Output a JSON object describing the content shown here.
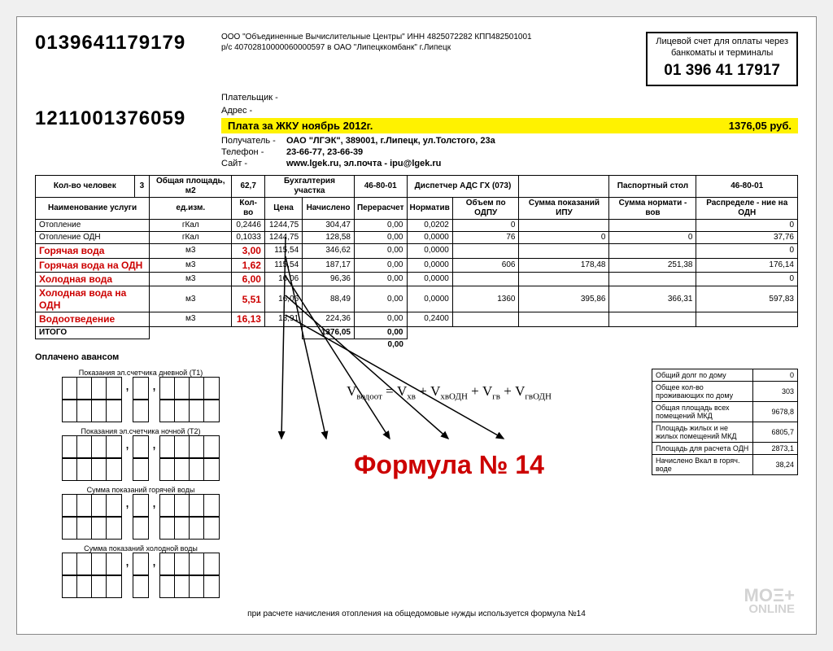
{
  "company": {
    "line1": "ООО \"Объединенные Вычислительные Центры\" ИНН 4825072282 КПП482501001",
    "line2": "р/с 40702810000060000597 в ОАО \"Липецккомбанк\" г.Липецк"
  },
  "account_box": {
    "title1": "Лицевой счет для оплаты через",
    "title2": "банкоматы и терминалы",
    "number": "01 396 41 17917"
  },
  "big_number_1": "0139641179179",
  "big_number_2": "1211001376059",
  "payer_label": "Плательщик -",
  "address_label": "Адрес -",
  "highlight": {
    "left": "Плата за ЖКУ ноябрь 2012г.",
    "right": "1376,05 руб."
  },
  "recipient": {
    "label": "Получатель -",
    "value": "ОАО \"ЛГЭК\", 389001, г.Липецк, ул.Толстого, 23а"
  },
  "phone": {
    "label": "Телефон -",
    "value": "23-66-77, 23-66-39"
  },
  "site": {
    "label": "Сайт -",
    "value": "www.lgek.ru, эл.почта - ipu@lgek.ru"
  },
  "header_row": {
    "persons_label": "Кол-во человек",
    "persons": "3",
    "area_label": "Общая площадь, м2",
    "area": "62,7",
    "buh_label": "Бухгалтерия участка",
    "buh": "46-80-01",
    "disp_label": "Диспетчер АДС ГХ (073)",
    "pass_label": "Паспортный стол",
    "pass": "46-80-01"
  },
  "columns": {
    "name": "Наименование услуги",
    "unit": "ед.изм.",
    "qty": "Кол-во",
    "price": "Цена",
    "charged": "Начислено",
    "recalc": "Перерасчет",
    "norm": "Норматив",
    "vol_odpu": "Объем по ОДПУ",
    "sum_ipu": "Сумма показаний ИПУ",
    "sum_norm": "Сумма нормати - вов",
    "dist_odn": "Распределе - ние на ОДН"
  },
  "rows": [
    {
      "name": "Отопление",
      "unit": "гКал",
      "qty": "0,2446",
      "price": "1244,75",
      "charged": "304,47",
      "recalc": "0,00",
      "norm": "0,0202",
      "v1": "0",
      "v2": "",
      "v3": "",
      "v4": "0",
      "red": false
    },
    {
      "name": "Отопление ОДН",
      "unit": "гКал",
      "qty": "0,1033",
      "price": "1244,75",
      "charged": "128,58",
      "recalc": "0,00",
      "norm": "0,0000",
      "v1": "76",
      "v2": "0",
      "v3": "0",
      "v4": "37,76",
      "red": false
    },
    {
      "name": "Горячая вода",
      "unit": "м3",
      "qty": "3,00",
      "price": "115,54",
      "charged": "346,62",
      "recalc": "0,00",
      "norm": "0,0000",
      "v1": "",
      "v2": "",
      "v3": "",
      "v4": "0",
      "red": true
    },
    {
      "name": "Горячая вода на ОДН",
      "unit": "м3",
      "qty": "1,62",
      "price": "115,54",
      "charged": "187,17",
      "recalc": "0,00",
      "norm": "0,0000",
      "v1": "606",
      "v2": "178,48",
      "v3": "251,38",
      "v4": "176,14",
      "red": true
    },
    {
      "name": "Холодная вода",
      "unit": "м3",
      "qty": "6,00",
      "price": "16,06",
      "charged": "96,36",
      "recalc": "0,00",
      "norm": "0,0000",
      "v1": "",
      "v2": "",
      "v3": "",
      "v4": "0",
      "red": true
    },
    {
      "name": "Холодная вода на ОДН",
      "unit": "м3",
      "qty": "5,51",
      "price": "16,06",
      "charged": "88,49",
      "recalc": "0,00",
      "norm": "0,0000",
      "v1": "1360",
      "v2": "395,86",
      "v3": "366,31",
      "v4": "597,83",
      "red": true
    },
    {
      "name": "Водоотведение",
      "unit": "м3",
      "qty": "16,13",
      "price": "13,91",
      "charged": "224,36",
      "recalc": "0,00",
      "norm": "0,2400",
      "v1": "",
      "v2": "",
      "v3": "",
      "v4": "",
      "red": true
    }
  ],
  "totals": {
    "label": "ИТОГО",
    "charged": "1376,05",
    "recalc": "0,00"
  },
  "advance_label": "Оплачено авансом",
  "advance_val": "0,00",
  "meter_labels": {
    "t1": "Показания эл.счетчика дневной (Т1)",
    "t2": "Показания эл.счетчика ночной (Т2)",
    "hot": "Сумма показаний горячей воды",
    "cold": "Сумма показаний холодной воды"
  },
  "formula": {
    "eq": "V",
    "s1": "водоот",
    "eq2": " = V",
    "s2": "хв",
    "eq3": " + V",
    "s3": "хвОДН",
    "eq4": " + V",
    "s4": "гв",
    "eq5": " + V",
    "s5": "гвОДН",
    "title": "Формула № 14"
  },
  "side_rows": [
    {
      "l": "Общий долг по дому",
      "v": "0"
    },
    {
      "l": "Общее кол-во проживающих по дому",
      "v": "303"
    },
    {
      "l": "Общая площадь всех помещений МКД",
      "v": "9678,8"
    },
    {
      "l": "Площадь жилых и не жилых помещений МКД",
      "v": "6805,7"
    },
    {
      "l": "Площадь для расчета ОДН",
      "v": "2873,1"
    },
    {
      "l": "Начислено Вкал в горяч. воде",
      "v": "38,24"
    }
  ],
  "footnote": "при расчете начисления отопления на общедомовые нужды используется формула №14",
  "watermark": {
    "l1": "ΜΟΞ+",
    "l2": "ONLINE"
  },
  "colors": {
    "red": "#cc0000",
    "yellow": "#fff200",
    "black": "#000000",
    "bg": "#f0f0f0",
    "paper": "#ffffff"
  },
  "fonts": {
    "body": 10,
    "big_num": 24,
    "red_row": 12,
    "formula_title": 32
  }
}
